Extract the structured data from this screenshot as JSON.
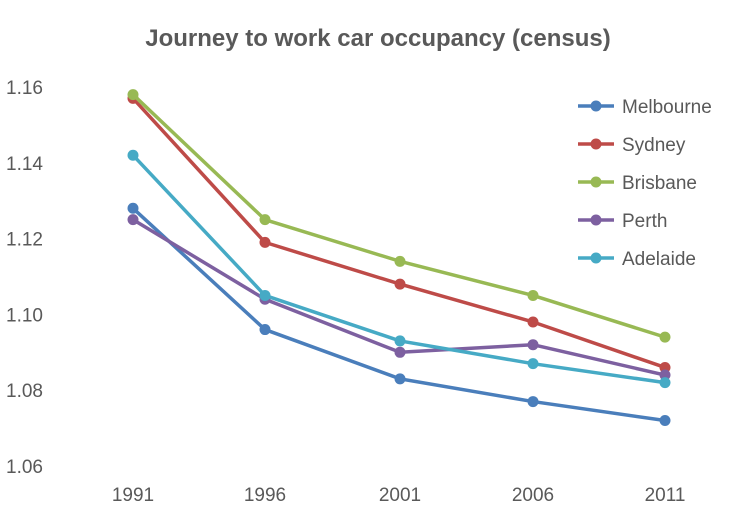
{
  "chart_data": {
    "type": "line",
    "title": "Journey to work car occupancy (census)",
    "xlabel": "",
    "ylabel": "",
    "categories": [
      "1991",
      "1996",
      "2001",
      "2006",
      "2011"
    ],
    "ylim": [
      1.06,
      1.16
    ],
    "yticks": [
      "1.06",
      "1.08",
      "1.10",
      "1.12",
      "1.14",
      "1.16"
    ],
    "grid": false,
    "legend_position": "top-right",
    "series": [
      {
        "name": "Melbourne",
        "color": "#4a7ebb",
        "values": [
          1.128,
          1.096,
          1.083,
          1.077,
          1.072
        ]
      },
      {
        "name": "Sydney",
        "color": "#be4b48",
        "values": [
          1.157,
          1.119,
          1.108,
          1.098,
          1.086
        ]
      },
      {
        "name": "Brisbane",
        "color": "#98b954",
        "values": [
          1.158,
          1.125,
          1.114,
          1.105,
          1.094
        ]
      },
      {
        "name": "Perth",
        "color": "#7d60a0",
        "values": [
          1.125,
          1.104,
          1.09,
          1.092,
          1.084
        ]
      },
      {
        "name": "Adelaide",
        "color": "#46aac5",
        "values": [
          1.142,
          1.105,
          1.093,
          1.087,
          1.082
        ]
      }
    ]
  }
}
